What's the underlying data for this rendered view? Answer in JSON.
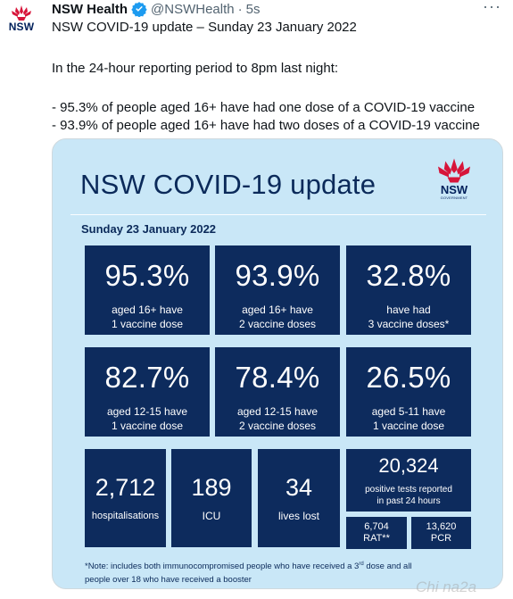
{
  "author": {
    "name": "NSW Health",
    "handle": "@NSWHealth",
    "separator": "·",
    "time": "5s",
    "avatar_wordmark": "NSW"
  },
  "tweet": {
    "line1": "NSW COVID-19 update – Sunday 23 January 2022",
    "line2": "In the 24-hour reporting period to 8pm last night:",
    "line3": "- 95.3% of people aged 16+ have had one dose of a COVID-19 vaccine",
    "line4": "- 93.9% of people aged 16+ have had two doses of a COVID-19 vaccine"
  },
  "card": {
    "title": "NSW COVID-19 update",
    "logo_wordmark": "NSW",
    "logo_sub": "GOVERNMENT",
    "date": "Sunday 23 January 2022",
    "stats": [
      {
        "value": "95.3%",
        "label1": "aged 16+ have",
        "label2": "1 vaccine dose"
      },
      {
        "value": "93.9%",
        "label1": "aged 16+ have",
        "label2": "2 vaccine doses"
      },
      {
        "value": "32.8%",
        "label1": "have had",
        "label2": "3 vaccine doses*"
      },
      {
        "value": "82.7%",
        "label1": "aged 12-15 have",
        "label2": "1 vaccine dose"
      },
      {
        "value": "78.4%",
        "label1": "aged 12-15 have",
        "label2": "2 vaccine doses"
      },
      {
        "value": "26.5%",
        "label1": "aged 5-11 have",
        "label2": "1 vaccine dose"
      }
    ],
    "hospitalisations": {
      "value": "2,712",
      "label": "hospitalisations"
    },
    "icu": {
      "value": "189",
      "label": "ICU"
    },
    "deaths": {
      "value": "34",
      "label": "lives lost"
    },
    "positive": {
      "value": "20,324",
      "label1": "positive tests reported",
      "label2": "in past 24 hours"
    },
    "rat": {
      "value": "6,704",
      "label": "RAT**"
    },
    "pcr": {
      "value": "13,620",
      "label": "PCR"
    },
    "note_line1_pre": "*Note: includes both immunocompromised people who have received a 3",
    "note_sup": "rd",
    "note_line1_post": " dose and all",
    "note_line2": "people over 18 who have received a booster"
  },
  "watermark": "Chi na2a",
  "colors": {
    "card_bg": "#c9e7f7",
    "box_bg": "#0d2b5d",
    "title": "#0b2a5a",
    "waratah_red": "#d7153a",
    "verified_blue": "#1d9bf0"
  }
}
